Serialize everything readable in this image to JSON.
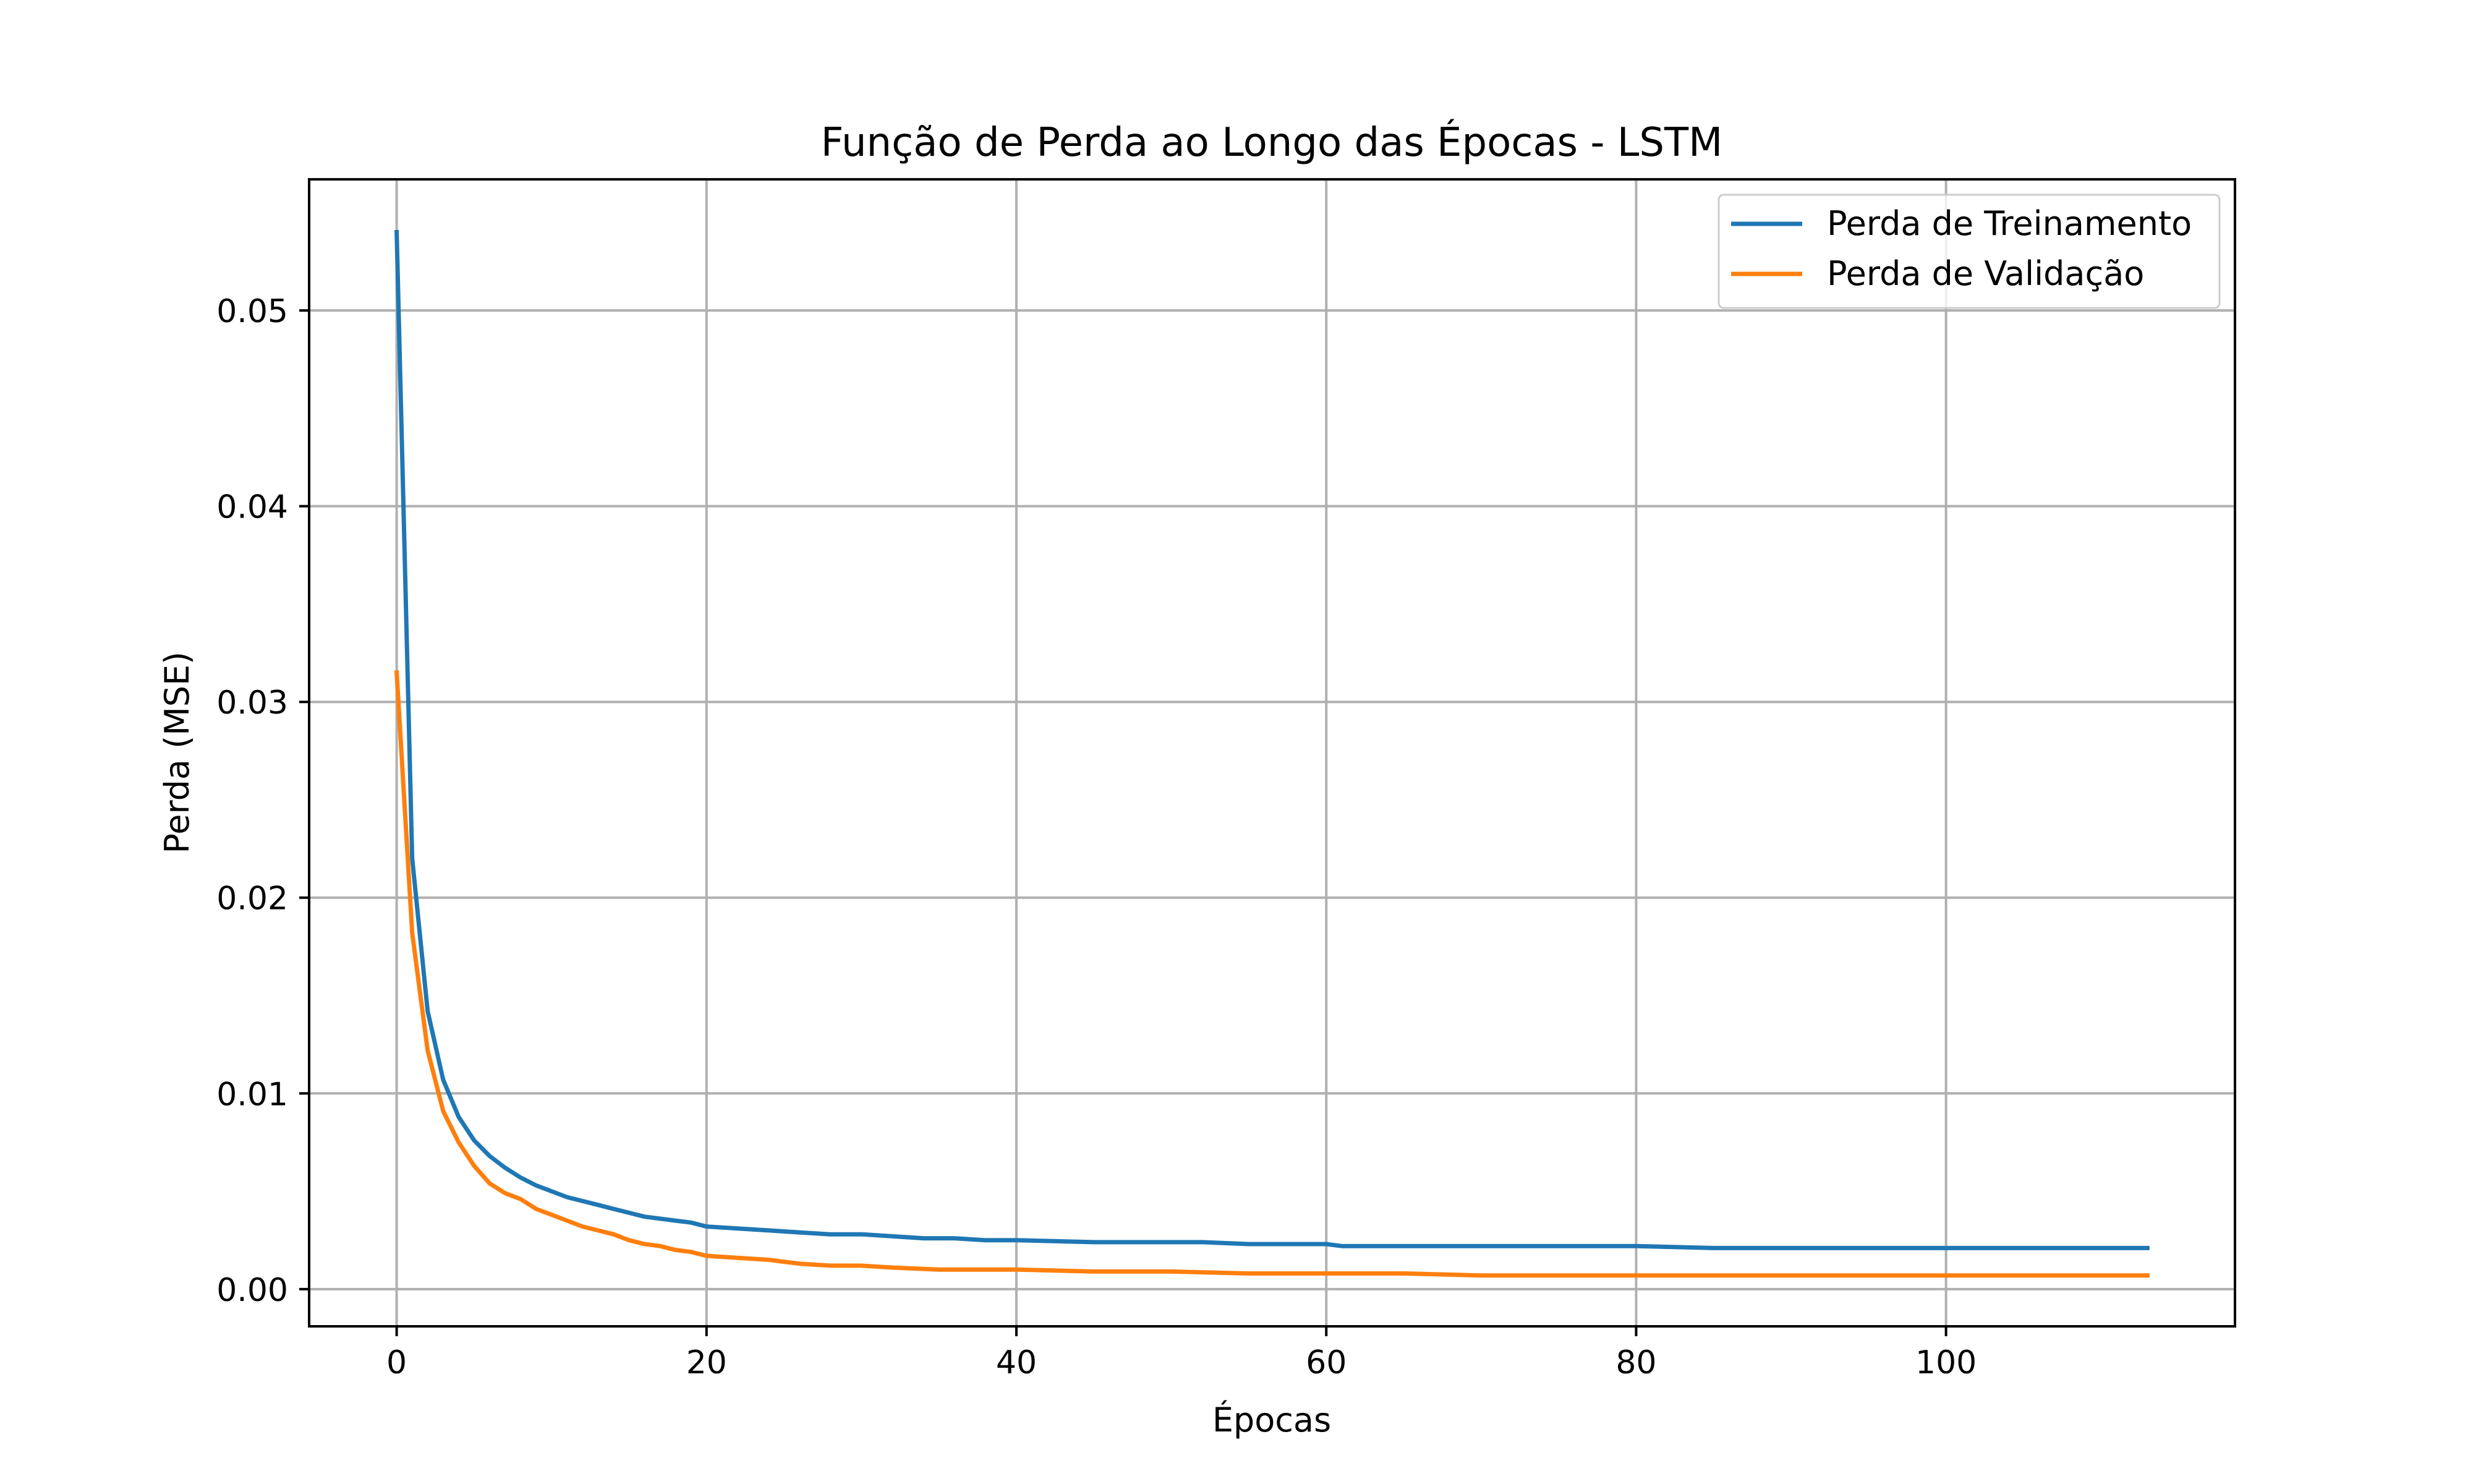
{
  "chart_data": {
    "type": "line",
    "title": "Função de Perda ao Longo das Épocas - LSTM",
    "xlabel": "Épocas",
    "ylabel": "Perda (MSE)",
    "xlim": [
      -5.65,
      118.65
    ],
    "ylim": [
      -0.0019,
      0.0567
    ],
    "xticks": [
      0,
      20,
      40,
      60,
      80,
      100
    ],
    "xtick_labels": [
      "0",
      "20",
      "40",
      "60",
      "80",
      "100"
    ],
    "yticks": [
      0.0,
      0.01,
      0.02,
      0.03,
      0.04,
      0.05
    ],
    "ytick_labels": [
      "0.00",
      "0.01",
      "0.02",
      "0.03",
      "0.04",
      "0.05"
    ],
    "grid": true,
    "legend_position": "top-right",
    "series": [
      {
        "name": "Perda de Treinamento",
        "color": "#1f77b4",
        "points": [
          [
            0,
            0.054
          ],
          [
            1,
            0.022
          ],
          [
            2,
            0.0142
          ],
          [
            3,
            0.0107
          ],
          [
            4,
            0.0088
          ],
          [
            5,
            0.0076
          ],
          [
            6,
            0.0068
          ],
          [
            7,
            0.0062
          ],
          [
            8,
            0.0057
          ],
          [
            9,
            0.0053
          ],
          [
            10,
            0.005
          ],
          [
            11,
            0.0047
          ],
          [
            12,
            0.0045
          ],
          [
            13,
            0.0043
          ],
          [
            14,
            0.0041
          ],
          [
            15,
            0.0039
          ],
          [
            16,
            0.0037
          ],
          [
            17,
            0.0036
          ],
          [
            18,
            0.0035
          ],
          [
            19,
            0.0034
          ],
          [
            20,
            0.0032
          ],
          [
            22,
            0.0031
          ],
          [
            24,
            0.003
          ],
          [
            26,
            0.0029
          ],
          [
            28,
            0.0028
          ],
          [
            30,
            0.0028
          ],
          [
            32,
            0.0027
          ],
          [
            34,
            0.0026
          ],
          [
            36,
            0.0026
          ],
          [
            38,
            0.0025
          ],
          [
            40,
            0.0025
          ],
          [
            45,
            0.0024
          ],
          [
            50,
            0.0024
          ],
          [
            52,
            0.0024
          ],
          [
            55,
            0.0023
          ],
          [
            60,
            0.0023
          ],
          [
            61,
            0.0022
          ],
          [
            65,
            0.0022
          ],
          [
            70,
            0.0022
          ],
          [
            72,
            0.0022
          ],
          [
            75,
            0.0022
          ],
          [
            80,
            0.0022
          ],
          [
            85,
            0.0021
          ],
          [
            90,
            0.0021
          ],
          [
            95,
            0.0021
          ],
          [
            100,
            0.0021
          ],
          [
            105,
            0.0021
          ],
          [
            110,
            0.0021
          ],
          [
            113,
            0.0021
          ]
        ]
      },
      {
        "name": "Perda de Validação",
        "color": "#ff7f0e",
        "points": [
          [
            0,
            0.0315
          ],
          [
            1,
            0.0182
          ],
          [
            2,
            0.0122
          ],
          [
            3,
            0.0091
          ],
          [
            4,
            0.0075
          ],
          [
            5,
            0.0063
          ],
          [
            6,
            0.0054
          ],
          [
            7,
            0.0049
          ],
          [
            8,
            0.0046
          ],
          [
            9,
            0.0041
          ],
          [
            10,
            0.0038
          ],
          [
            11,
            0.0035
          ],
          [
            12,
            0.0032
          ],
          [
            13,
            0.003
          ],
          [
            14,
            0.0028
          ],
          [
            15,
            0.0025
          ],
          [
            16,
            0.0023
          ],
          [
            17,
            0.0022
          ],
          [
            18,
            0.002
          ],
          [
            19,
            0.0019
          ],
          [
            20,
            0.0017
          ],
          [
            22,
            0.0016
          ],
          [
            24,
            0.0015
          ],
          [
            26,
            0.0013
          ],
          [
            28,
            0.0012
          ],
          [
            30,
            0.0012
          ],
          [
            32,
            0.0011
          ],
          [
            35,
            0.001
          ],
          [
            40,
            0.001
          ],
          [
            45,
            0.0009
          ],
          [
            50,
            0.0009
          ],
          [
            55,
            0.0008
          ],
          [
            60,
            0.0008
          ],
          [
            65,
            0.0008
          ],
          [
            70,
            0.0007
          ],
          [
            75,
            0.0007
          ],
          [
            80,
            0.0007
          ],
          [
            85,
            0.0007
          ],
          [
            90,
            0.0007
          ],
          [
            95,
            0.0007
          ],
          [
            100,
            0.0007
          ],
          [
            105,
            0.0007
          ],
          [
            110,
            0.0007
          ],
          [
            113,
            0.0007
          ]
        ]
      }
    ]
  }
}
